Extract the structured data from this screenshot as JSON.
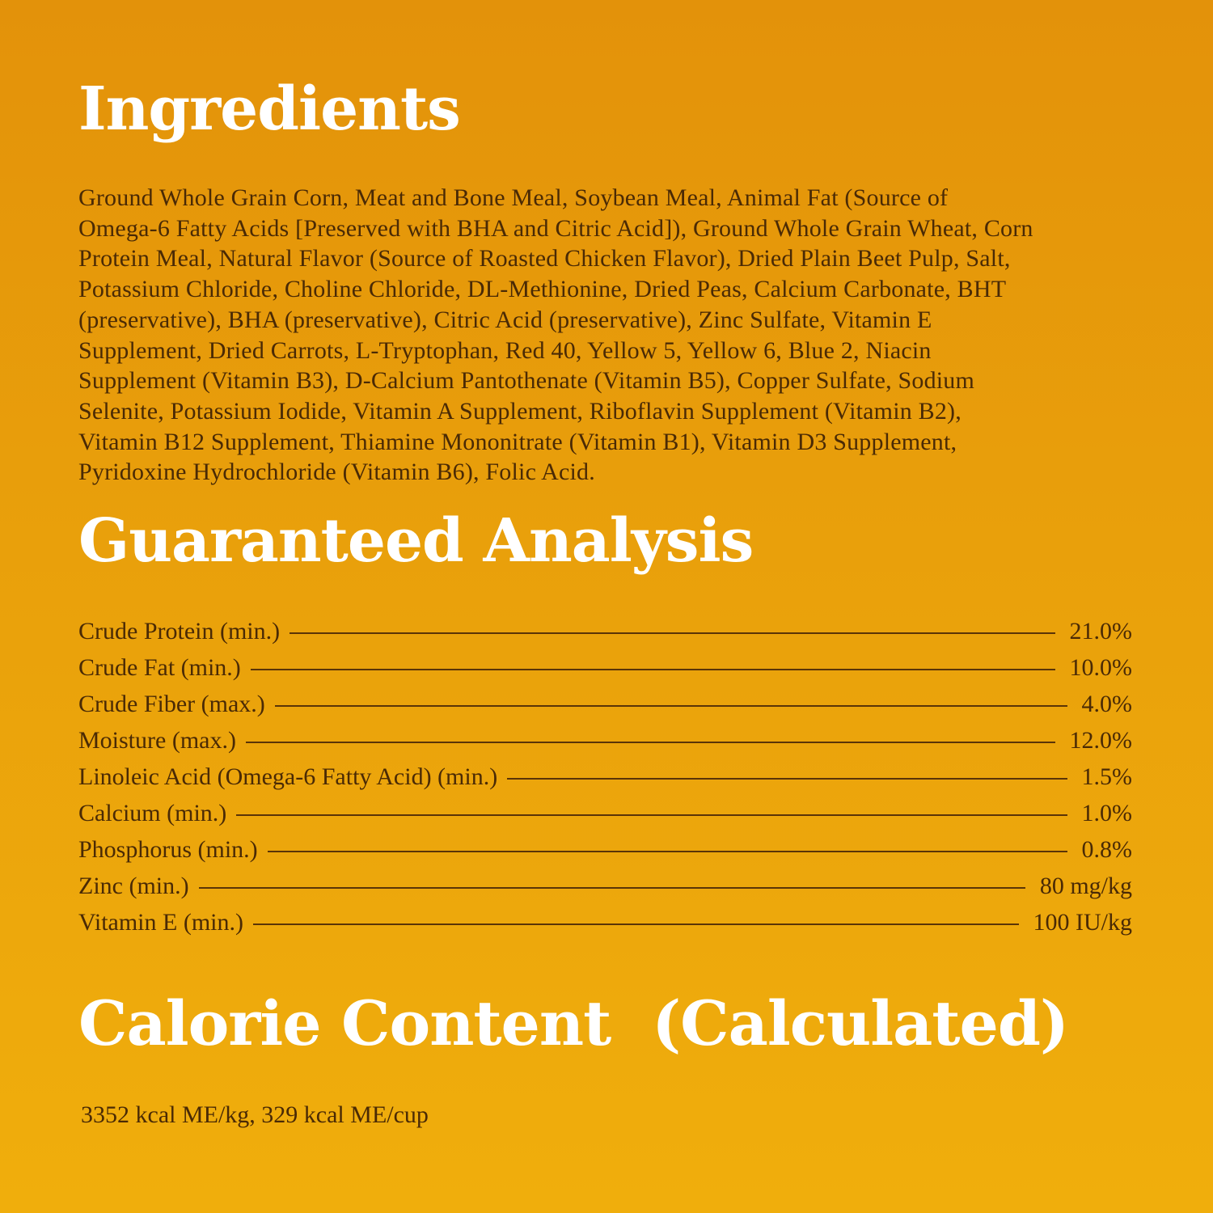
{
  "colors": {
    "background_top": "#e3920a",
    "background_bottom": "#f0ae0c",
    "heading": "#ffffff",
    "text": "#4a2a05"
  },
  "ingredients": {
    "title": "Ingredients",
    "lines": [
      "Ground Whole Grain Corn, Meat and Bone Meal, Soybean Meal, Animal Fat (Source of",
      "Omega-6 Fatty Acids [Preserved with BHA and Citric Acid]), Ground Whole Grain Wheat, Corn",
      "Protein Meal, Natural Flavor (Source of Roasted Chicken Flavor), Dried Plain Beet Pulp, Salt,",
      "Potassium Chloride, Choline Chloride, DL-Methionine, Dried Peas, Calcium Carbonate, BHT",
      "(preservative), BHA (preservative), Citric Acid (preservative), Zinc Sulfate, Vitamin E",
      "Supplement, Dried Carrots, L-Tryptophan, Red 40, Yellow 5, Yellow 6, Blue 2, Niacin",
      "Supplement (Vitamin B3), D-Calcium Pantothenate (Vitamin B5), Copper Sulfate, Sodium",
      "Selenite, Potassium Iodide, Vitamin A Supplement, Riboflavin Supplement (Vitamin B2),",
      "Vitamin B12 Supplement, Thiamine Mononitrate (Vitamin B1), Vitamin D3 Supplement,",
      "Pyridoxine Hydrochloride (Vitamin B6), Folic Acid."
    ]
  },
  "analysis": {
    "title": "Guaranteed Analysis",
    "rows": [
      {
        "label": "Crude Protein (min.)",
        "value": "21.0%"
      },
      {
        "label": "Crude Fat (min.)",
        "value": "10.0%"
      },
      {
        "label": "Crude Fiber (max.)",
        "value": "4.0%"
      },
      {
        "label": "Moisture (max.)",
        "value": "12.0%"
      },
      {
        "label": "Linoleic Acid (Omega-6 Fatty Acid) (min.)",
        "value": "1.5%"
      },
      {
        "label": "Calcium (min.)",
        "value": "1.0%"
      },
      {
        "label": "Phosphorus (min.)",
        "value": "0.8%"
      },
      {
        "label": "Zinc (min.)",
        "value": "80 mg/kg"
      },
      {
        "label": "Vitamin E (min.)",
        "value": "100 IU/kg"
      }
    ]
  },
  "calories": {
    "title": "Calorie Content  (Calculated)",
    "text": "3352 kcal ME/kg, 329 kcal ME/cup"
  }
}
